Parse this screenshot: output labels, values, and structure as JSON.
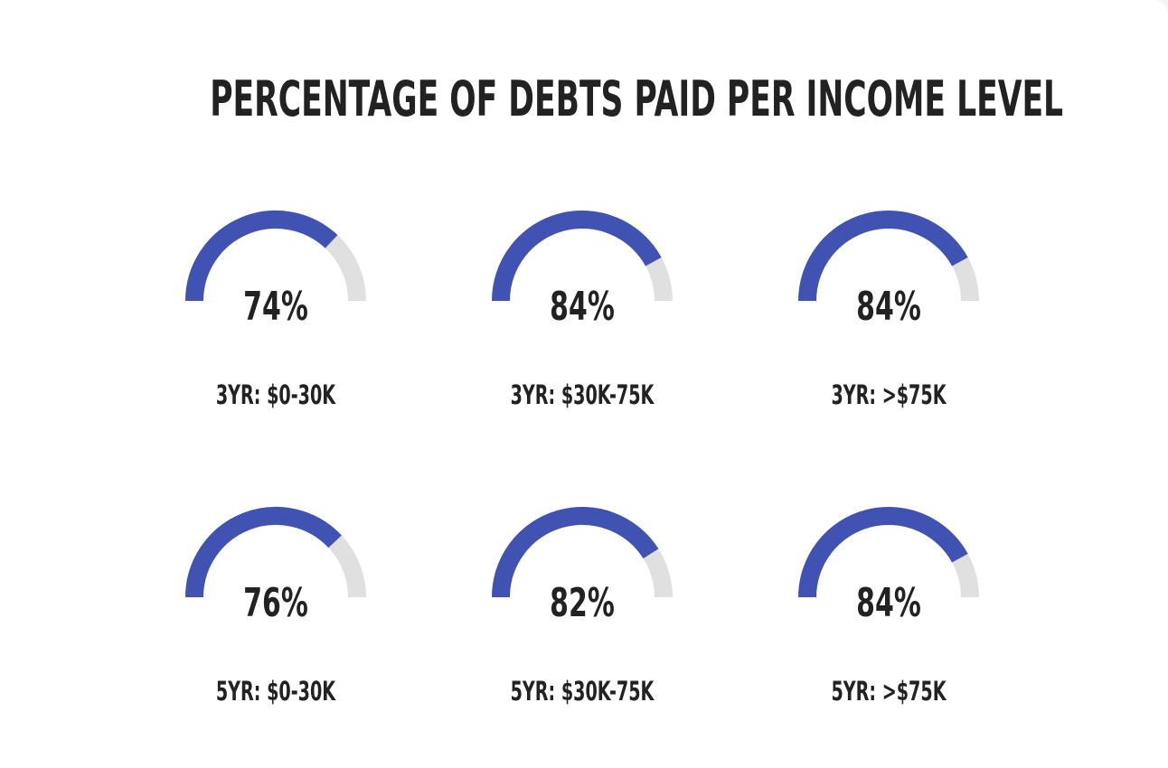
{
  "title": "PERCENTAGE OF DEBTS PAID PER INCOME LEVEL",
  "colors": {
    "fill": "#4153b2",
    "track": "#e0e0e0",
    "text": "#222222",
    "background": "#ffffff"
  },
  "chart_data": {
    "type": "gauge",
    "title": "PERCENTAGE OF DEBTS PAID PER INCOME LEVEL",
    "range": [
      0,
      100
    ],
    "unit": "%",
    "gauges": [
      {
        "label": "3YR: $0-30K",
        "value": 74,
        "display": "74%"
      },
      {
        "label": "3YR: $30K-75K",
        "value": 84,
        "display": "84%"
      },
      {
        "label": "3YR: >$75K",
        "value": 84,
        "display": "84%"
      },
      {
        "label": "5YR: $0-30K",
        "value": 76,
        "display": "76%"
      },
      {
        "label": "5YR: $30K-75K",
        "value": 82,
        "display": "82%"
      },
      {
        "label": "5YR: >$75K",
        "value": 84,
        "display": "84%"
      }
    ]
  }
}
